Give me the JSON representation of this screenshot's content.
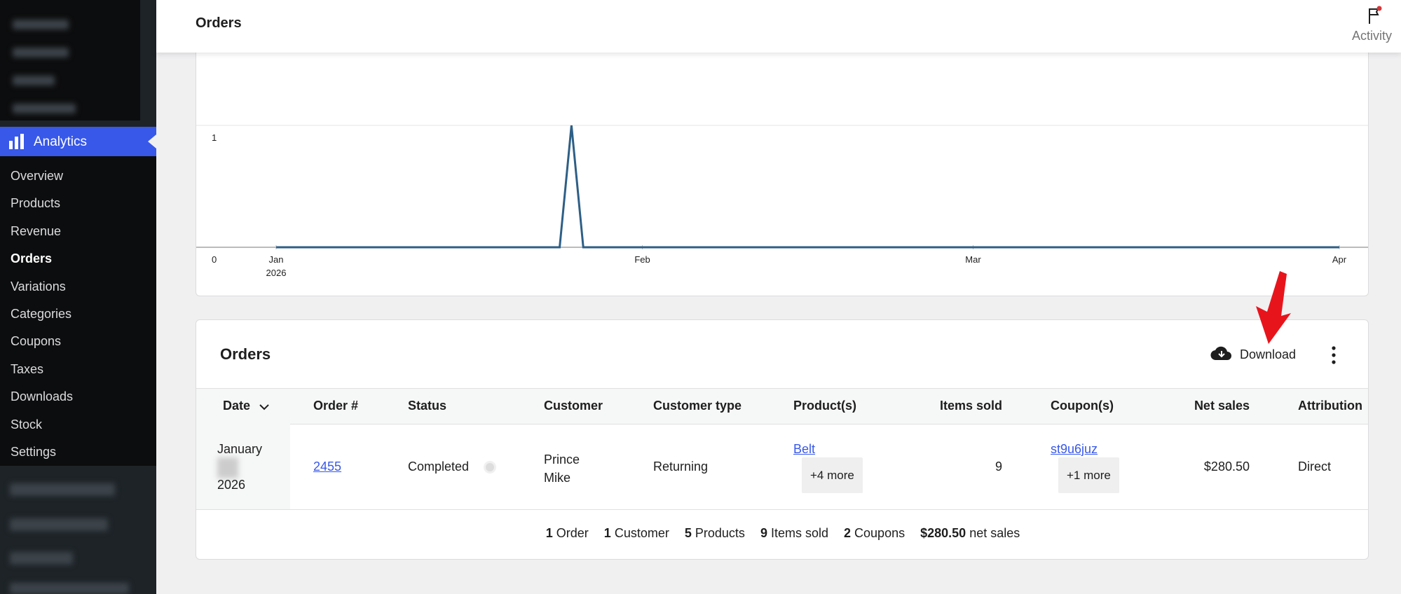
{
  "sidebar": {
    "section": "Analytics",
    "current": "Orders",
    "items": [
      "Overview",
      "Products",
      "Revenue",
      "Orders",
      "Variations",
      "Categories",
      "Coupons",
      "Taxes",
      "Downloads",
      "Stock",
      "Settings"
    ]
  },
  "header": {
    "title": "Orders",
    "activity": "Activity"
  },
  "chart_data": {
    "type": "line",
    "x": [
      0,
      24,
      25,
      26,
      90
    ],
    "values": [
      0,
      0,
      1,
      0,
      0
    ],
    "color": "#2e5f86",
    "xlim": [
      0,
      90
    ],
    "ylim": [
      0,
      1
    ],
    "xticks": [
      {
        "value": 0,
        "label": "Jan"
      },
      {
        "value": 31,
        "label": "Feb"
      },
      {
        "value": 59,
        "label": "Mar"
      },
      {
        "value": 90,
        "label": "Apr"
      }
    ],
    "x_sublabel": "2026",
    "yticks": [
      0,
      1
    ],
    "grid": true
  },
  "table": {
    "title": "Orders",
    "download": "Download",
    "columns": [
      "Date",
      "Order #",
      "Status",
      "Customer",
      "Customer type",
      "Product(s)",
      "Items sold",
      "Coupon(s)",
      "Net sales",
      "Attribution"
    ],
    "rows": [
      {
        "date": [
          "January",
          "2026"
        ],
        "order": "2455",
        "status": "Completed",
        "customer": "Prince Mike",
        "customer_type": "Returning",
        "products": [
          "Belt",
          "+4 more"
        ],
        "items_sold": 9,
        "coupons": [
          "st9u6juz",
          "+1 more"
        ],
        "net_sales": "$280.50",
        "attribution": "Direct"
      }
    ]
  },
  "summary": [
    {
      "count": 1,
      "label": "Order"
    },
    {
      "count": 1,
      "label": "Customer"
    },
    {
      "count": 5,
      "label": "Products"
    },
    {
      "count": 9,
      "label": "Items sold"
    },
    {
      "count": 2,
      "label": "Coupons"
    },
    {
      "count": "$280.50",
      "label": "net sales"
    }
  ]
}
